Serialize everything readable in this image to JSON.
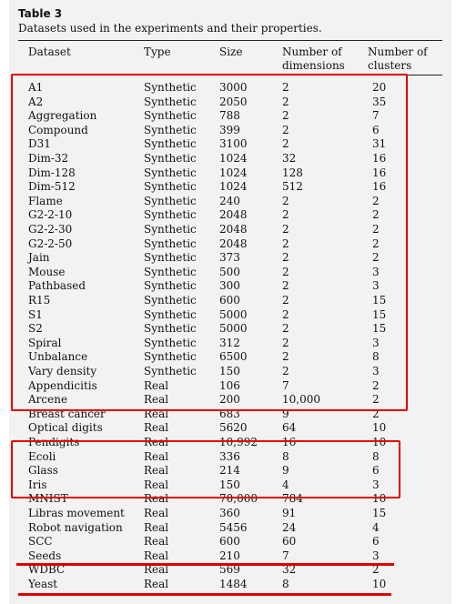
{
  "caption": {
    "title": "Table 3",
    "subtitle": "Datasets used in the experiments and their properties."
  },
  "columns": [
    {
      "label": "Dataset"
    },
    {
      "label": "Type"
    },
    {
      "label": "Size"
    },
    {
      "label": "Number of dimensions"
    },
    {
      "label": "Number of clusters"
    }
  ],
  "rows": [
    [
      "A1",
      "Synthetic",
      "3000",
      "2",
      "20"
    ],
    [
      "A2",
      "Synthetic",
      "2050",
      "2",
      "35"
    ],
    [
      "Aggregation",
      "Synthetic",
      "788",
      "2",
      "7"
    ],
    [
      "Compound",
      "Synthetic",
      "399",
      "2",
      "6"
    ],
    [
      "D31",
      "Synthetic",
      "3100",
      "2",
      "31"
    ],
    [
      "Dim-32",
      "Synthetic",
      "1024",
      "32",
      "16"
    ],
    [
      "Dim-128",
      "Synthetic",
      "1024",
      "128",
      "16"
    ],
    [
      "Dim-512",
      "Synthetic",
      "1024",
      "512",
      "16"
    ],
    [
      "Flame",
      "Synthetic",
      "240",
      "2",
      "2"
    ],
    [
      "G2-2-10",
      "Synthetic",
      "2048",
      "2",
      "2"
    ],
    [
      "G2-2-30",
      "Synthetic",
      "2048",
      "2",
      "2"
    ],
    [
      "G2-2-50",
      "Synthetic",
      "2048",
      "2",
      "2"
    ],
    [
      "Jain",
      "Synthetic",
      "373",
      "2",
      "2"
    ],
    [
      "Mouse",
      "Synthetic",
      "500",
      "2",
      "3"
    ],
    [
      "Pathbased",
      "Synthetic",
      "300",
      "2",
      "3"
    ],
    [
      "R15",
      "Synthetic",
      "600",
      "2",
      "15"
    ],
    [
      "S1",
      "Synthetic",
      "5000",
      "2",
      "15"
    ],
    [
      "S2",
      "Synthetic",
      "5000",
      "2",
      "15"
    ],
    [
      "Spiral",
      "Synthetic",
      "312",
      "2",
      "3"
    ],
    [
      "Unbalance",
      "Synthetic",
      "6500",
      "2",
      "8"
    ],
    [
      "Vary density",
      "Synthetic",
      "150",
      "2",
      "3"
    ],
    [
      "Appendicitis",
      "Real",
      "106",
      "7",
      "2"
    ],
    [
      "Arcene",
      "Real",
      "200",
      "10,000",
      "2"
    ],
    [
      "Breast cancer",
      "Real",
      "683",
      "9",
      "2"
    ],
    [
      "Optical digits",
      "Real",
      "5620",
      "64",
      "10"
    ],
    [
      "Pendigits",
      "Real",
      "10,992",
      "16",
      "10"
    ],
    [
      "Ecoli",
      "Real",
      "336",
      "8",
      "8"
    ],
    [
      "Glass",
      "Real",
      "214",
      "9",
      "6"
    ],
    [
      "Iris",
      "Real",
      "150",
      "4",
      "3"
    ],
    [
      "MNIST",
      "Real",
      "70,000",
      "784",
      "10"
    ],
    [
      "Libras movement",
      "Real",
      "360",
      "91",
      "15"
    ],
    [
      "Robot navigation",
      "Real",
      "5456",
      "24",
      "4"
    ],
    [
      "SCC",
      "Real",
      "600",
      "60",
      "6"
    ],
    [
      "Seeds",
      "Real",
      "210",
      "7",
      "3"
    ],
    [
      "WDBC",
      "Real",
      "569",
      "32",
      "2"
    ],
    [
      "Yeast",
      "Real",
      "1484",
      "8",
      "10"
    ]
  ]
}
